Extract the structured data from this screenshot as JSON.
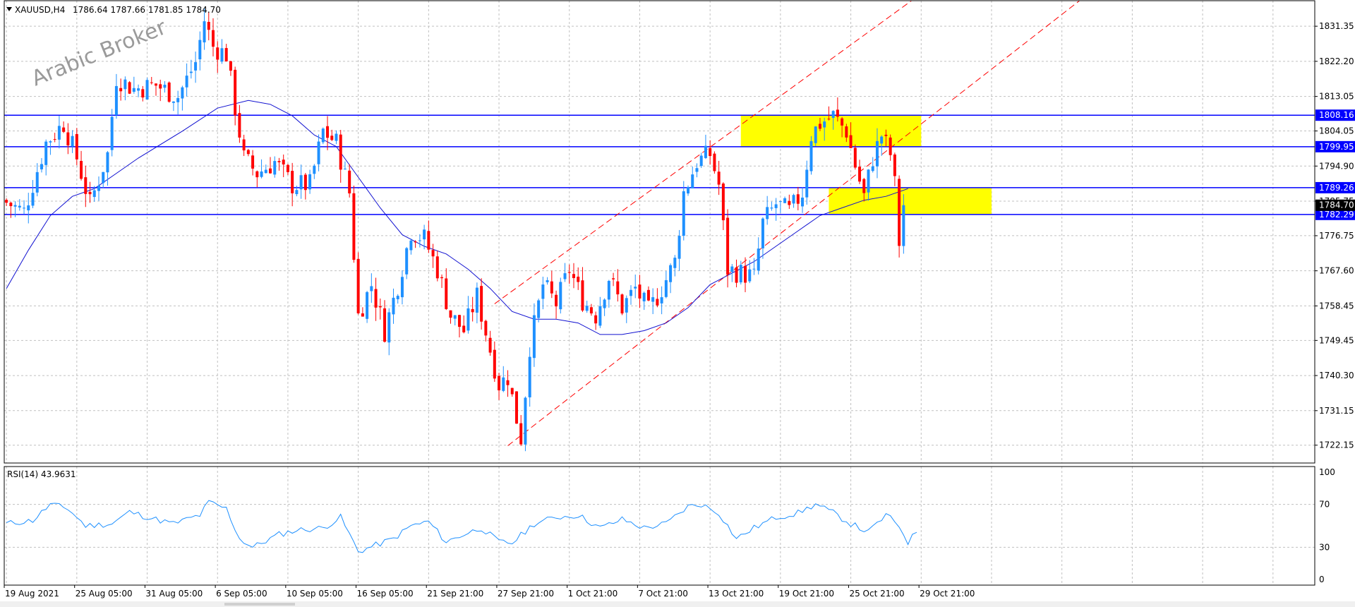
{
  "header": {
    "symbol": "XAUUSD,H4",
    "ohlc": "1786.64 1787.66 1781.85 1784.70"
  },
  "watermark": "Arabic Broker",
  "rsi_header": "RSI(14) 43.9631",
  "colors": {
    "up": "#1e90ff",
    "down": "#ff0000",
    "ma": "#1010d0",
    "level_line": "#0000ff",
    "channel": "#ff0000",
    "zone": "#ffff00",
    "rsi_line": "#1e90ff",
    "grid": "#c0c0c0",
    "price_tag_bg": "#0000ff",
    "current_price_bg": "#000000"
  },
  "chart_data": {
    "type": "candlestick",
    "instrument": "XAUUSD",
    "timeframe": "H4",
    "price_axis": {
      "range": [
        1717.5,
        1838.0
      ],
      "ticks": [
        "1831.35",
        "1822.20",
        "1813.05",
        "1804.05",
        "1794.90",
        "1785.75",
        "1776.75",
        "1767.60",
        "1758.45",
        "1749.45",
        "1740.30",
        "1731.15",
        "1722.15"
      ]
    },
    "time_axis": {
      "bar_count": 205,
      "view_bars": 298,
      "labels": [
        {
          "text": "19 Aug 2021",
          "bar": 0
        },
        {
          "text": "25 Aug 05:00",
          "bar": 16
        },
        {
          "text": "31 Aug 05:00",
          "bar": 32
        },
        {
          "text": "6 Sep 05:00",
          "bar": 48
        },
        {
          "text": "10 Sep 05:00",
          "bar": 64
        },
        {
          "text": "16 Sep 05:00",
          "bar": 80
        },
        {
          "text": "21 Sep 21:00",
          "bar": 96
        },
        {
          "text": "27 Sep 21:00",
          "bar": 112
        },
        {
          "text": "1 Oct 21:00",
          "bar": 128
        },
        {
          "text": "7 Oct 21:00",
          "bar": 144
        },
        {
          "text": "13 Oct 21:00",
          "bar": 160
        },
        {
          "text": "19 Oct 21:00",
          "bar": 176
        },
        {
          "text": "25 Oct 21:00",
          "bar": 192
        },
        {
          "text": "29 Oct 21:00",
          "bar": 208
        }
      ]
    },
    "price_path": [
      [
        0,
        1786
      ],
      [
        5,
        1783
      ],
      [
        10,
        1801
      ],
      [
        14,
        1806
      ],
      [
        17,
        1797
      ],
      [
        20,
        1785
      ],
      [
        24,
        1798
      ],
      [
        26,
        1818
      ],
      [
        30,
        1815
      ],
      [
        35,
        1816
      ],
      [
        40,
        1813
      ],
      [
        44,
        1822
      ],
      [
        46,
        1833
      ],
      [
        48,
        1826
      ],
      [
        51,
        1824
      ],
      [
        53,
        1810
      ],
      [
        55,
        1797
      ],
      [
        58,
        1793
      ],
      [
        62,
        1796
      ],
      [
        66,
        1790
      ],
      [
        70,
        1790
      ],
      [
        73,
        1804
      ],
      [
        76,
        1801
      ],
      [
        79,
        1788
      ],
      [
        81,
        1756
      ],
      [
        84,
        1764
      ],
      [
        87,
        1752
      ],
      [
        90,
        1764
      ],
      [
        93,
        1778
      ],
      [
        96,
        1776
      ],
      [
        99,
        1768
      ],
      [
        102,
        1756
      ],
      [
        105,
        1752
      ],
      [
        108,
        1761
      ],
      [
        111,
        1747
      ],
      [
        113,
        1738
      ],
      [
        115,
        1740
      ],
      [
        117,
        1729
      ],
      [
        118,
        1724
      ],
      [
        120,
        1748
      ],
      [
        123,
        1764
      ],
      [
        126,
        1759
      ],
      [
        129,
        1768
      ],
      [
        132,
        1760
      ],
      [
        135,
        1756
      ],
      [
        138,
        1766
      ],
      [
        141,
        1758
      ],
      [
        144,
        1763
      ],
      [
        147,
        1757
      ],
      [
        150,
        1763
      ],
      [
        153,
        1770
      ],
      [
        155,
        1788
      ],
      [
        158,
        1796
      ],
      [
        161,
        1798
      ],
      [
        163,
        1790
      ],
      [
        165,
        1768
      ],
      [
        168,
        1767
      ],
      [
        171,
        1766
      ],
      [
        173,
        1780
      ],
      [
        176,
        1785
      ],
      [
        179,
        1783
      ],
      [
        182,
        1788
      ],
      [
        184,
        1803
      ],
      [
        186,
        1806
      ],
      [
        189,
        1808
      ],
      [
        192,
        1804
      ],
      [
        194,
        1795
      ],
      [
        196,
        1787
      ],
      [
        198,
        1797
      ],
      [
        200,
        1803
      ],
      [
        202,
        1798
      ],
      [
        203,
        1790
      ],
      [
        204,
        1775
      ],
      [
        205,
        1782
      ],
      [
        206,
        1786
      ],
      [
        207,
        1784.7
      ]
    ],
    "moving_average": [
      [
        0,
        1763
      ],
      [
        5,
        1773
      ],
      [
        10,
        1782
      ],
      [
        15,
        1787
      ],
      [
        20,
        1789
      ],
      [
        25,
        1793
      ],
      [
        30,
        1797
      ],
      [
        40,
        1804
      ],
      [
        48,
        1810
      ],
      [
        55,
        1812
      ],
      [
        60,
        1811
      ],
      [
        65,
        1808
      ],
      [
        70,
        1803
      ],
      [
        75,
        1800
      ],
      [
        80,
        1792
      ],
      [
        85,
        1784
      ],
      [
        90,
        1777
      ],
      [
        95,
        1774
      ],
      [
        100,
        1772
      ],
      [
        105,
        1768
      ],
      [
        110,
        1763
      ],
      [
        115,
        1757
      ],
      [
        120,
        1755
      ],
      [
        125,
        1755
      ],
      [
        130,
        1754
      ],
      [
        135,
        1751
      ],
      [
        140,
        1751
      ],
      [
        145,
        1752
      ],
      [
        150,
        1754
      ],
      [
        155,
        1758
      ],
      [
        160,
        1764
      ],
      [
        165,
        1767
      ],
      [
        170,
        1770
      ],
      [
        175,
        1774
      ],
      [
        180,
        1778
      ],
      [
        185,
        1782
      ],
      [
        190,
        1784
      ],
      [
        195,
        1786
      ],
      [
        200,
        1787
      ],
      [
        205,
        1789
      ]
    ],
    "levels": [
      {
        "price": 1808.16,
        "label": "1808.16"
      },
      {
        "price": 1799.95,
        "label": "1799.95"
      },
      {
        "price": 1789.26,
        "label": "1789.26"
      },
      {
        "price": 1782.29,
        "label": "1782.29"
      }
    ],
    "current_price": {
      "price": 1784.7,
      "label": "1784.70"
    },
    "zones": [
      {
        "bar_from": 167,
        "bar_to": 208,
        "price_from": 1799.95,
        "price_to": 1808.16
      },
      {
        "bar_from": 187,
        "bar_to": 224,
        "price_from": 1782.29,
        "price_to": 1789.26
      }
    ],
    "channel_lines": [
      {
        "from": [
          111,
          1759
        ],
        "to": [
          207,
          1839
        ]
      },
      {
        "from": [
          114,
          1722
        ],
        "to": [
          244,
          1838
        ]
      }
    ],
    "rsi": {
      "period": 14,
      "value": 43.9631,
      "range": [
        0,
        100
      ],
      "ticks": [
        "100",
        "70",
        "30",
        "0"
      ],
      "path": [
        [
          0,
          52
        ],
        [
          6,
          55
        ],
        [
          10,
          70
        ],
        [
          14,
          66
        ],
        [
          18,
          50
        ],
        [
          24,
          52
        ],
        [
          28,
          63
        ],
        [
          34,
          56
        ],
        [
          38,
          52
        ],
        [
          44,
          60
        ],
        [
          46,
          72
        ],
        [
          50,
          66
        ],
        [
          53,
          38
        ],
        [
          56,
          30
        ],
        [
          62,
          42
        ],
        [
          66,
          46
        ],
        [
          72,
          48
        ],
        [
          76,
          58
        ],
        [
          80,
          26
        ],
        [
          84,
          32
        ],
        [
          88,
          38
        ],
        [
          92,
          50
        ],
        [
          96,
          54
        ],
        [
          100,
          35
        ],
        [
          104,
          42
        ],
        [
          108,
          48
        ],
        [
          112,
          35
        ],
        [
          115,
          34
        ],
        [
          120,
          52
        ],
        [
          125,
          58
        ],
        [
          130,
          60
        ],
        [
          135,
          48
        ],
        [
          140,
          56
        ],
        [
          145,
          48
        ],
        [
          150,
          52
        ],
        [
          155,
          68
        ],
        [
          158,
          70
        ],
        [
          162,
          62
        ],
        [
          166,
          38
        ],
        [
          170,
          48
        ],
        [
          175,
          58
        ],
        [
          180,
          62
        ],
        [
          184,
          70
        ],
        [
          188,
          62
        ],
        [
          192,
          52
        ],
        [
          196,
          44
        ],
        [
          200,
          60
        ],
        [
          203,
          50
        ],
        [
          205,
          35
        ],
        [
          207,
          43.96
        ]
      ]
    }
  }
}
